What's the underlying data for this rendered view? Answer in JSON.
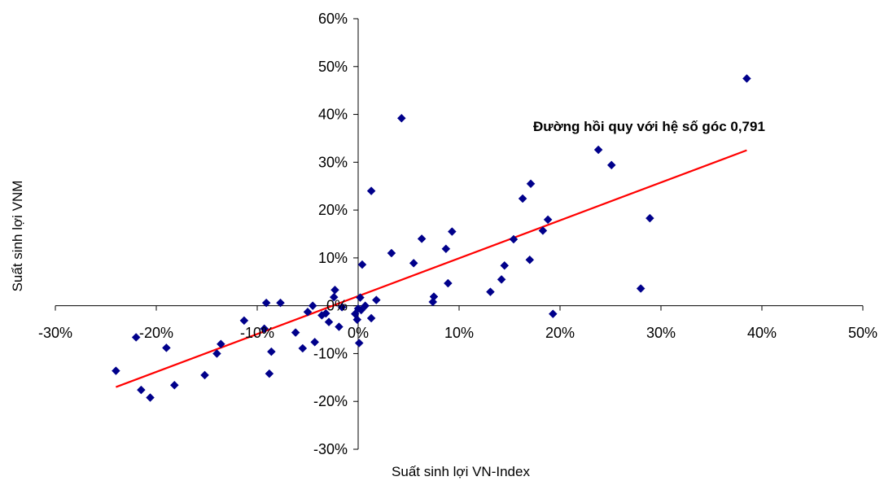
{
  "chart_data": {
    "type": "scatter",
    "title": "",
    "xlabel": "Suất sinh lợi VN-Index",
    "ylabel": "Suất sinh lợi VNM",
    "xlim": [
      -30,
      50
    ],
    "ylim": [
      -30,
      60
    ],
    "x_ticks": [
      "-30%",
      "-20%",
      "-10%",
      "0%",
      "10%",
      "20%",
      "30%",
      "40%",
      "50%"
    ],
    "y_ticks": [
      "-30%",
      "-20%",
      "-10%",
      "0%",
      "10%",
      "20%",
      "30%",
      "40%",
      "50%",
      "60%"
    ],
    "grid": false,
    "annotation": "Đường hồi quy với hệ số góc 0,791",
    "colors": {
      "points": "#00008B",
      "regression": "#FF0000"
    },
    "regression_line": {
      "slope": 0.791,
      "x": [
        -24,
        38.5
      ],
      "y": [
        -17,
        32.5
      ]
    },
    "points": [
      {
        "x": -24.0,
        "y": -13.6
      },
      {
        "x": -22.0,
        "y": -6.6
      },
      {
        "x": -21.5,
        "y": -17.6
      },
      {
        "x": -20.6,
        "y": -19.2
      },
      {
        "x": -19.0,
        "y": -8.8
      },
      {
        "x": -18.2,
        "y": -16.6
      },
      {
        "x": -15.2,
        "y": -14.5
      },
      {
        "x": -14.0,
        "y": -10.0
      },
      {
        "x": -13.6,
        "y": -8.0
      },
      {
        "x": -11.3,
        "y": -3.1
      },
      {
        "x": -9.3,
        "y": -4.8
      },
      {
        "x": -9.1,
        "y": 0.6
      },
      {
        "x": -8.8,
        "y": -14.2
      },
      {
        "x": -8.6,
        "y": -9.6
      },
      {
        "x": -7.7,
        "y": 0.6
      },
      {
        "x": -6.2,
        "y": -5.6
      },
      {
        "x": -5.5,
        "y": -8.9
      },
      {
        "x": -5.0,
        "y": -1.3
      },
      {
        "x": -4.5,
        "y": 0.0
      },
      {
        "x": -4.3,
        "y": -7.6
      },
      {
        "x": -3.6,
        "y": -2.0
      },
      {
        "x": -3.2,
        "y": -1.6
      },
      {
        "x": -2.9,
        "y": -3.4
      },
      {
        "x": -2.4,
        "y": 1.8
      },
      {
        "x": -2.3,
        "y": 3.3
      },
      {
        "x": -1.9,
        "y": -4.4
      },
      {
        "x": -1.6,
        "y": -0.3
      },
      {
        "x": -0.3,
        "y": -1.7
      },
      {
        "x": -0.1,
        "y": -2.9
      },
      {
        "x": 0.0,
        "y": -0.6
      },
      {
        "x": 0.1,
        "y": -7.8
      },
      {
        "x": 0.2,
        "y": 1.7
      },
      {
        "x": 0.3,
        "y": -0.9
      },
      {
        "x": 0.4,
        "y": 8.6
      },
      {
        "x": 0.7,
        "y": 0.0
      },
      {
        "x": 1.3,
        "y": -2.6
      },
      {
        "x": 1.3,
        "y": 24.0
      },
      {
        "x": 1.8,
        "y": 1.2
      },
      {
        "x": 3.3,
        "y": 11.0
      },
      {
        "x": 4.3,
        "y": 39.2
      },
      {
        "x": 5.5,
        "y": 8.9
      },
      {
        "x": 6.3,
        "y": 14.0
      },
      {
        "x": 7.4,
        "y": 0.8
      },
      {
        "x": 7.5,
        "y": 1.9
      },
      {
        "x": 8.7,
        "y": 11.9
      },
      {
        "x": 8.9,
        "y": 4.7
      },
      {
        "x": 9.3,
        "y": 15.5
      },
      {
        "x": 13.1,
        "y": 2.9
      },
      {
        "x": 14.2,
        "y": 5.5
      },
      {
        "x": 14.5,
        "y": 8.4
      },
      {
        "x": 15.4,
        "y": 13.9
      },
      {
        "x": 16.3,
        "y": 22.4
      },
      {
        "x": 17.1,
        "y": 25.5
      },
      {
        "x": 17.0,
        "y": 9.6
      },
      {
        "x": 18.3,
        "y": 15.7
      },
      {
        "x": 18.8,
        "y": 18.0
      },
      {
        "x": 19.3,
        "y": -1.7
      },
      {
        "x": 23.8,
        "y": 32.6
      },
      {
        "x": 25.1,
        "y": 29.4
      },
      {
        "x": 28.0,
        "y": 3.6
      },
      {
        "x": 28.9,
        "y": 18.3
      },
      {
        "x": 38.5,
        "y": 47.5
      }
    ]
  }
}
